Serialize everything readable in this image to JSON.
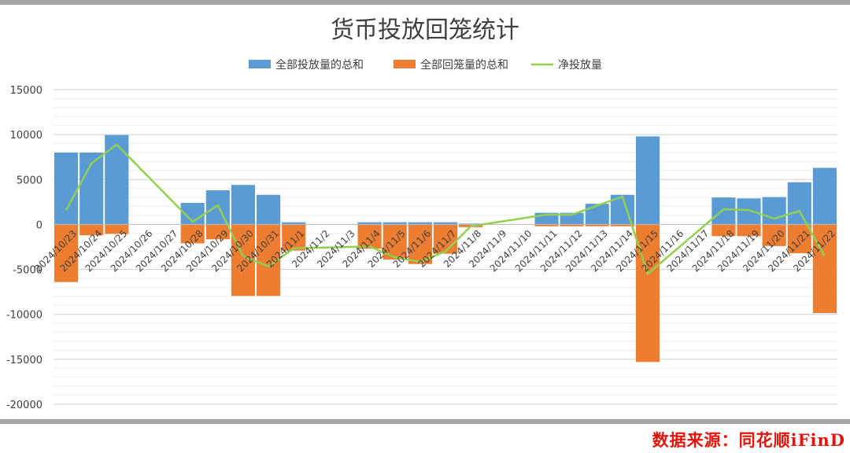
{
  "chart_data": {
    "type": "bar",
    "title": "货币投放回笼统计",
    "categories": [
      "2024/10/23",
      "2024/10/24",
      "2024/10/25",
      "2024/10/26",
      "2024/10/27",
      "2024/10/28",
      "2024/10/29",
      "2024/10/30",
      "2024/10/31",
      "2024/11/1",
      "2024/11/2",
      "2024/11/3",
      "2024/11/4",
      "2024/11/5",
      "2024/11/6",
      "2024/11/7",
      "2024/11/8",
      "2024/11/9",
      "2024/11/10",
      "2024/11/11",
      "2024/11/12",
      "2024/11/13",
      "2024/11/14",
      "2024/11/15",
      "2024/11/16",
      "2024/11/17",
      "2024/11/18",
      "2024/11/19",
      "2024/11/20",
      "2024/11/21",
      "2024/11/22"
    ],
    "series": [
      {
        "name": "全部投放量的总和",
        "kind": "bar",
        "color": "#5b9bd5",
        "values": [
          8000,
          8000,
          9950,
          null,
          null,
          2400,
          3800,
          4400,
          3300,
          250,
          null,
          null,
          250,
          250,
          250,
          250,
          100,
          null,
          null,
          1300,
          1300,
          2300,
          3300,
          9800,
          null,
          null,
          3000,
          2900,
          3050,
          4700,
          6300
        ]
      },
      {
        "name": "全部回笼量的总和",
        "kind": "bar",
        "color": "#ed7d31",
        "values": [
          -6400,
          -1200,
          -1050,
          null,
          null,
          -2100,
          -1650,
          -7950,
          -7950,
          -2900,
          null,
          null,
          -2700,
          -3900,
          -4400,
          -3250,
          -300,
          null,
          null,
          -200,
          -200,
          -200,
          -200,
          -15300,
          null,
          null,
          -1300,
          -1300,
          -2400,
          -3200,
          -9850
        ]
      },
      {
        "name": "净投放量",
        "kind": "line",
        "color": "#92d050",
        "values": [
          1600,
          6800,
          8900,
          null,
          null,
          300,
          2150,
          -3550,
          -4650,
          -2650,
          null,
          null,
          -2450,
          -3650,
          -4150,
          -3000,
          -200,
          null,
          null,
          1100,
          1100,
          2100,
          3100,
          -5500,
          null,
          null,
          1700,
          1600,
          650,
          1500,
          -3550
        ]
      }
    ],
    "ylim": [
      -20000,
      15000
    ],
    "yticks": [
      15000,
      10000,
      5000,
      0,
      -5000,
      -10000,
      -15000,
      -20000
    ],
    "ytick_labels": [
      "15000",
      "10000",
      "5000",
      "0",
      "-5000",
      "-10000",
      "-15000",
      "-20000"
    ],
    "grid": true,
    "legend": "top-center",
    "xlabel": "",
    "ylabel": ""
  },
  "source_text": "数据来源：同花顺iFinD"
}
